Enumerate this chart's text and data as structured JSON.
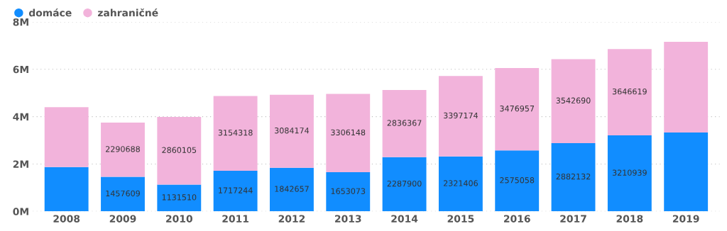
{
  "chart_data": {
    "type": "bar",
    "stacked": true,
    "categories": [
      "2008",
      "2009",
      "2010",
      "2011",
      "2012",
      "2013",
      "2014",
      "2015",
      "2016",
      "2017",
      "2018",
      "2019"
    ],
    "series": [
      {
        "name": "domáce",
        "color": "#118dff",
        "values": [
          1870000,
          1457609,
          1131510,
          1717244,
          1842657,
          1653073,
          2287900,
          2321406,
          2575058,
          2882132,
          3210939,
          3330000
        ],
        "value_labels": [
          null,
          "1457609",
          "1131510",
          "1717244",
          "1842657",
          "1653073",
          "2287900",
          "2321406",
          "2575058",
          "2882132",
          "3210939",
          null
        ]
      },
      {
        "name": "zahraničné",
        "color": "#f2b3db",
        "values": [
          2530000,
          2290688,
          2860105,
          3154318,
          3084174,
          3306148,
          2836367,
          3397174,
          3476957,
          3542690,
          3646619,
          3830000
        ],
        "value_labels": [
          null,
          "2290688",
          "2860105",
          "3154318",
          "3084174",
          "3306148",
          "2836367",
          "3397174",
          "3476957",
          "3542690",
          "3646619",
          null
        ]
      }
    ],
    "ylim": [
      0,
      8000000
    ],
    "yticks": [
      {
        "value": 0,
        "label": "0M"
      },
      {
        "value": 2000000,
        "label": "2M"
      },
      {
        "value": 4000000,
        "label": "4M"
      },
      {
        "value": 6000000,
        "label": "6M"
      },
      {
        "value": 8000000,
        "label": "8M"
      }
    ],
    "grid": "y",
    "legend": "top left"
  }
}
